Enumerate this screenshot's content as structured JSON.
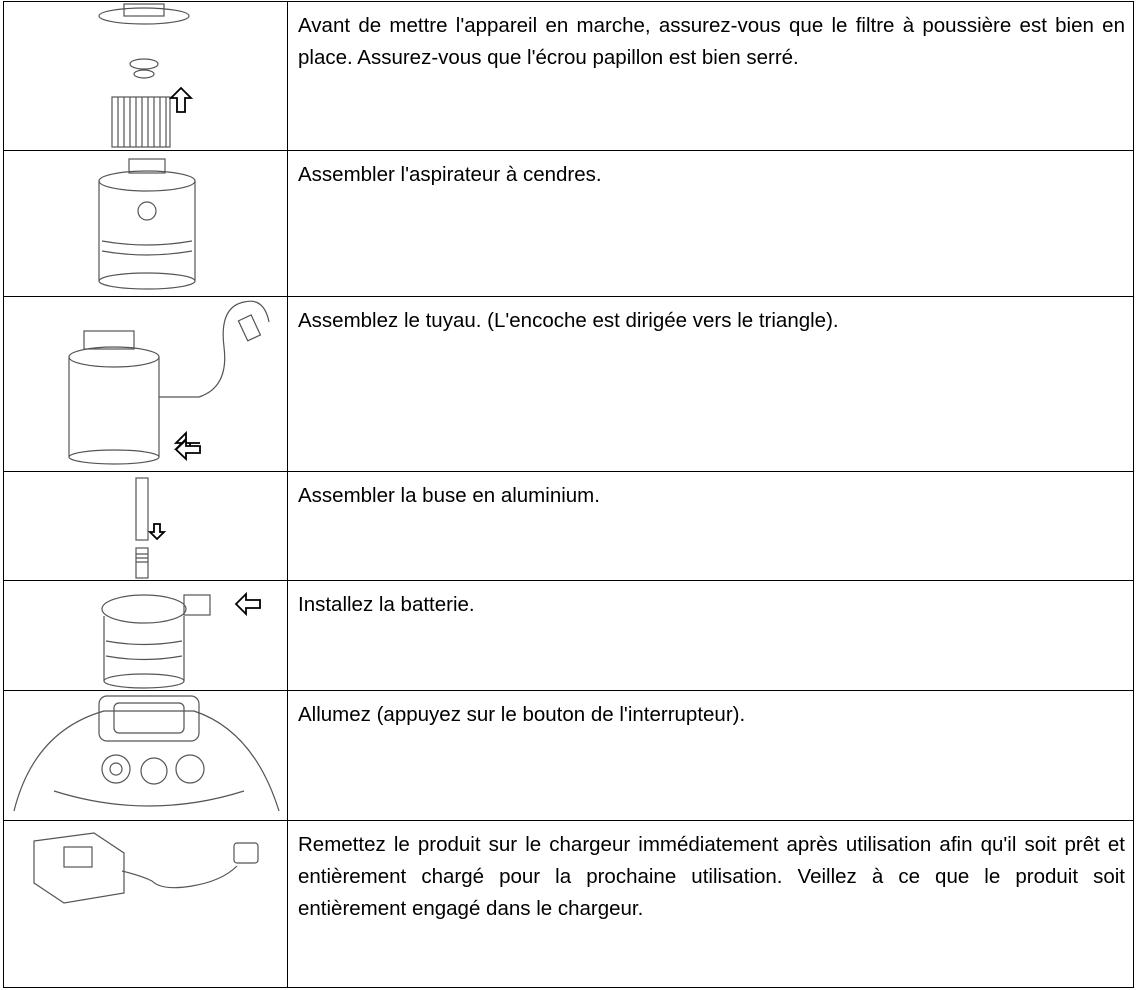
{
  "table": {
    "rows": [
      "Avant de mettre l'appareil en marche, assurez-vous que le filtre à poussière est bien en place. Assurez-vous que l'écrou papillon est bien serré.",
      "Assembler l'aspirateur à cendres.",
      "Assemblez le tuyau. (L'encoche est dirigée vers le triangle).",
      "Assembler la buse en aluminium.",
      "Installez la batterie.",
      "Allumez (appuyez sur le bouton de l'interrupteur).",
      "Remettez le produit sur le chargeur immédiatement après utilisation afin qu'il soit prêt et entièrement chargé pour la prochaine utilisation. Veillez à ce que le produit soit entièrement engagé dans le chargeur."
    ]
  }
}
